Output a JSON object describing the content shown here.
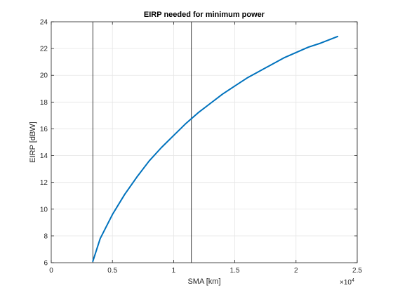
{
  "chart_data": {
    "type": "line",
    "title": "EIRP needed for minimum power",
    "xlabel": "SMA [km]",
    "ylabel": "EIRP [dBW]",
    "x_exponent_label": "×10",
    "x_exponent_power": "4",
    "xlim": [
      0,
      25000
    ],
    "ylim": [
      6,
      24
    ],
    "xticks": [
      0,
      5000,
      10000,
      15000,
      20000,
      25000
    ],
    "xtick_labels": [
      "0",
      "0.5",
      "1",
      "1.5",
      "2",
      "2.5"
    ],
    "yticks": [
      6,
      8,
      10,
      12,
      14,
      16,
      18,
      20,
      22,
      24
    ],
    "ytick_labels": [
      "6",
      "8",
      "10",
      "12",
      "14",
      "16",
      "18",
      "20",
      "22",
      "24"
    ],
    "grid": true,
    "vertical_lines": [
      3400,
      11450
    ],
    "series": [
      {
        "color": "#0072bd",
        "x": [
          3400,
          4000,
          5000,
          6000,
          7000,
          8000,
          9000,
          10000,
          11000,
          12000,
          13000,
          14000,
          15000,
          16000,
          17000,
          18000,
          19000,
          20000,
          21000,
          22000,
          23400
        ],
        "y": [
          6.1,
          7.8,
          9.6,
          11.1,
          12.4,
          13.6,
          14.6,
          15.5,
          16.4,
          17.2,
          17.9,
          18.6,
          19.2,
          19.8,
          20.3,
          20.8,
          21.3,
          21.7,
          22.1,
          22.4,
          22.9
        ]
      }
    ],
    "vline_color": "#262626"
  }
}
